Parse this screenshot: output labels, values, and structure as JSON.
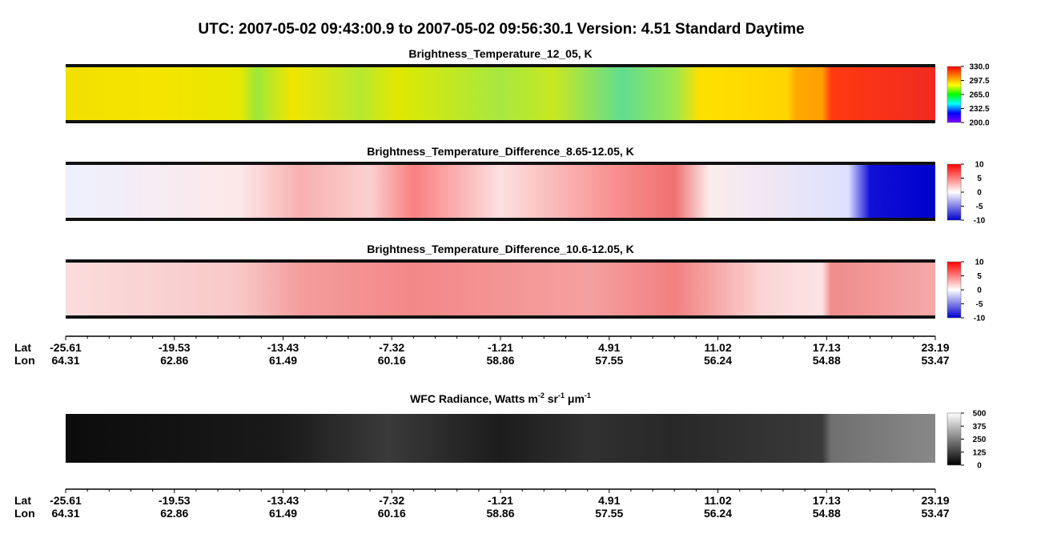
{
  "title": "UTC:  2007-05-02   09:43:00.9  to  2007-05-02   09:56:30.1    Version: 4.51  Standard Daytime",
  "chart_data": [
    {
      "type": "image",
      "title": "Brightness_Temperature_12_05, K",
      "colorbar": {
        "colors": [
          "#8000ff",
          "#0000ff",
          "#00ffff",
          "#00ff00",
          "#ffff00",
          "#ff8000",
          "#ff0000"
        ],
        "lim": [
          200,
          330
        ],
        "ticks": [
          {
            "value": 330,
            "label": "330.0"
          },
          {
            "value": 297.5,
            "label": "297.5"
          },
          {
            "value": 265,
            "label": "265.0"
          },
          {
            "value": 232.5,
            "label": "232.5"
          },
          {
            "value": 200,
            "label": "200.0"
          }
        ]
      }
    },
    {
      "type": "image",
      "title": "Brightness_Temperature_Difference_8.65-12.05, K",
      "colorbar": {
        "colors": [
          "#0000cc",
          "#ffffff",
          "#ff0000"
        ],
        "lim": [
          -10,
          10
        ],
        "ticks": [
          10,
          5,
          0,
          -5,
          -10
        ]
      }
    },
    {
      "type": "image",
      "title": "Brightness_Temperature_Difference_10.6-12.05, K",
      "colorbar": {
        "colors": [
          "#0000cc",
          "#ffffff",
          "#ff0000"
        ],
        "lim": [
          -10,
          10
        ],
        "ticks": [
          10,
          5,
          0,
          -5,
          -10
        ]
      }
    },
    {
      "type": "image",
      "title_parts": [
        "WFC Radiance, Watts m",
        "-2",
        " sr",
        "-1",
        " μm",
        "-1"
      ],
      "colorbar": {
        "colors": [
          "#000000",
          "#ffffff"
        ],
        "lim": [
          0,
          500
        ],
        "ticks": [
          500,
          375,
          250,
          125,
          0
        ]
      }
    }
  ],
  "location_axes": [
    {
      "lat_label": "Lat",
      "lon_label": "Lon",
      "lat": [
        -25.61,
        -19.53,
        -13.43,
        -7.32,
        -1.21,
        4.91,
        11.02,
        17.13,
        23.19
      ],
      "lon": [
        64.31,
        62.86,
        61.49,
        60.16,
        58.86,
        57.55,
        56.24,
        54.88,
        53.47
      ]
    },
    {
      "lat_label": "Lat",
      "lon_label": "Lon",
      "lat": [
        -25.61,
        -19.53,
        -13.43,
        -7.32,
        -1.21,
        4.91,
        11.02,
        17.13,
        23.19
      ],
      "lon": [
        64.31,
        62.86,
        61.49,
        60.16,
        58.86,
        57.55,
        56.24,
        54.88,
        53.47
      ]
    }
  ]
}
